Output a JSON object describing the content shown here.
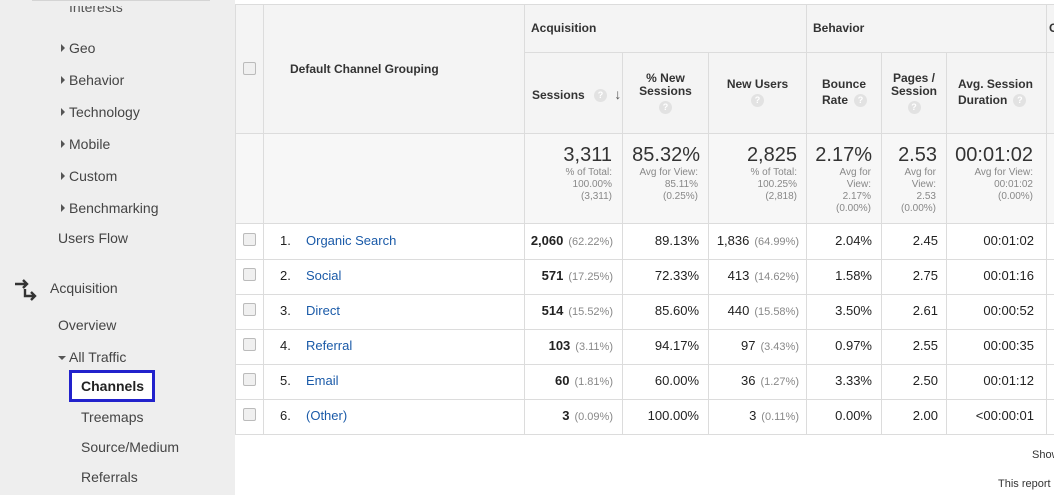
{
  "sidebar": {
    "cut_item": "Interests",
    "items": [
      {
        "label": "Geo"
      },
      {
        "label": "Behavior"
      },
      {
        "label": "Technology"
      },
      {
        "label": "Mobile"
      },
      {
        "label": "Custom"
      },
      {
        "label": "Benchmarking"
      }
    ],
    "users_flow": "Users Flow",
    "acquisition": "Acquisition",
    "overview": "Overview",
    "all_traffic": "All Traffic",
    "channels": "Channels",
    "treemaps": "Treemaps",
    "source_medium": "Source/Medium",
    "referrals": "Referrals"
  },
  "table": {
    "group_acquisition": "Acquisition",
    "group_behavior": "Behavior",
    "group_conversions_cut": "C",
    "dimension_header": "Default Channel Grouping",
    "columns": {
      "sessions": "Sessions",
      "new_sessions_1": "% New",
      "new_sessions_2": "Sessions",
      "new_users": "New Users",
      "bounce_1": "Bounce",
      "bounce_2": "Rate",
      "pages_1": "Pages /",
      "pages_2": "Session",
      "duration_1": "Avg. Session",
      "duration_2": "Duration"
    },
    "help_glyph": "?",
    "sort_glyph": "↓",
    "summary": {
      "sessions": {
        "value": "3,311",
        "l1": "% of Total:",
        "l2": "100.00%",
        "l3": "(3,311)"
      },
      "new_sessions": {
        "value": "85.32%",
        "l1": "Avg for View:",
        "l2": "85.11%",
        "l3": "(0.25%)"
      },
      "new_users": {
        "value": "2,825",
        "l1": "% of Total:",
        "l2": "100.25%",
        "l3": "(2,818)"
      },
      "bounce": {
        "value": "2.17%",
        "l1": "Avg for",
        "l2": "View:",
        "l3": "2.17%",
        "l4": "(0.00%)"
      },
      "pages": {
        "value": "2.53",
        "l1": "Avg for",
        "l2": "View:",
        "l3": "2.53",
        "l4": "(0.00%)"
      },
      "duration": {
        "value": "00:01:02",
        "l1": "Avg for View:",
        "l2": "00:01:02",
        "l3": "(0.00%)"
      }
    },
    "rows": [
      {
        "idx": "1.",
        "channel": "Organic Search",
        "sessions": "2,060",
        "sessions_pct": "(62.22%)",
        "new_sessions": "89.13%",
        "new_users": "1,836",
        "new_users_pct": "(64.99%)",
        "bounce": "2.04%",
        "pages": "2.45",
        "duration": "00:01:02"
      },
      {
        "idx": "2.",
        "channel": "Social",
        "sessions": "571",
        "sessions_pct": "(17.25%)",
        "new_sessions": "72.33%",
        "new_users": "413",
        "new_users_pct": "(14.62%)",
        "bounce": "1.58%",
        "pages": "2.75",
        "duration": "00:01:16"
      },
      {
        "idx": "3.",
        "channel": "Direct",
        "sessions": "514",
        "sessions_pct": "(15.52%)",
        "new_sessions": "85.60%",
        "new_users": "440",
        "new_users_pct": "(15.58%)",
        "bounce": "3.50%",
        "pages": "2.61",
        "duration": "00:00:52"
      },
      {
        "idx": "4.",
        "channel": "Referral",
        "sessions": "103",
        "sessions_pct": "(3.11%)",
        "new_sessions": "94.17%",
        "new_users": "97",
        "new_users_pct": "(3.43%)",
        "bounce": "0.97%",
        "pages": "2.55",
        "duration": "00:00:35"
      },
      {
        "idx": "5.",
        "channel": "Email",
        "sessions": "60",
        "sessions_pct": "(1.81%)",
        "new_sessions": "60.00%",
        "new_users": "36",
        "new_users_pct": "(1.27%)",
        "bounce": "3.33%",
        "pages": "2.50",
        "duration": "00:01:12"
      },
      {
        "idx": "6.",
        "channel": "(Other)",
        "sessions": "3",
        "sessions_pct": "(0.09%)",
        "new_sessions": "100.00%",
        "new_users": "3",
        "new_users_pct": "(0.11%)",
        "bounce": "0.00%",
        "pages": "2.00",
        "duration": "<00:00:01"
      }
    ]
  },
  "footer": {
    "show_cut": "Show",
    "report_cut": "This report"
  },
  "colors": {
    "link": "#1a5aa8",
    "highlight": "#2222cc"
  }
}
